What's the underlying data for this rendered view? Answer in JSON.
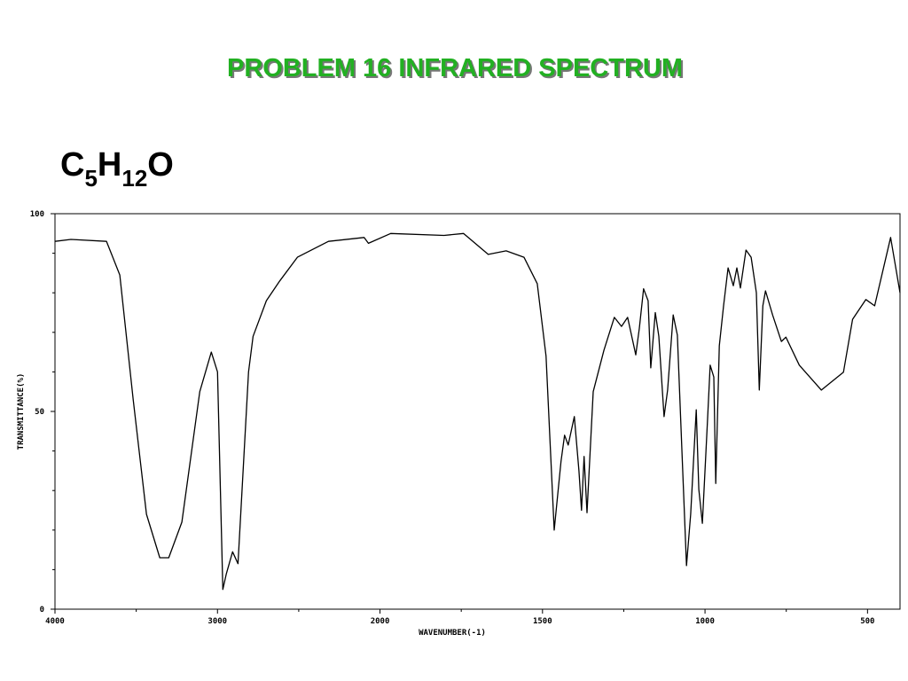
{
  "chart_data": {
    "type": "line",
    "title": "PROBLEM  16   INFRARED SPECTRUM",
    "formula_parts": [
      "C",
      "5",
      "H",
      "12",
      "O"
    ],
    "x_label": "WAVENUMBER(-1)",
    "y_label": "TRANSMITTANCE(%)",
    "xlim": [
      4000,
      400
    ],
    "x_scale_break": {
      "value": 2000,
      "factor": 2
    },
    "xticks": [
      4000,
      3000,
      2000,
      1500,
      1000,
      500
    ],
    "xminor": [
      3500,
      2500,
      1750,
      1250,
      750
    ],
    "ylim": [
      0,
      100
    ],
    "yticks": [
      0,
      50,
      100
    ],
    "yminor": [
      10,
      20,
      30,
      40,
      60,
      70,
      80,
      90
    ],
    "color": "#000000",
    "x": [
      4000,
      3902,
      3683,
      3601,
      3519,
      3437,
      3355,
      3300,
      3219,
      3109,
      3038,
      3000,
      2967,
      2945,
      2907,
      2874,
      2809,
      2781,
      2699,
      2617,
      2508,
      2317,
      2098,
      2071,
      1967,
      1803,
      1743,
      1667,
      1612,
      1557,
      1516,
      1489,
      1464,
      1443,
      1432,
      1421,
      1402,
      1388,
      1380,
      1372,
      1363,
      1344,
      1311,
      1279,
      1257,
      1238,
      1213,
      1202,
      1189,
      1175,
      1167,
      1153,
      1142,
      1126,
      1115,
      1098,
      1085,
      1071,
      1057,
      1044,
      1027,
      1019,
      1008,
      992,
      984,
      973,
      967,
      956,
      943,
      929,
      913,
      902,
      891,
      874,
      858,
      842,
      833,
      822,
      814,
      792,
      765,
      751,
      710,
      642,
      574,
      546,
      505,
      478,
      429,
      400
    ],
    "values": [
      93,
      93.5,
      93,
      84.5,
      53,
      24,
      13,
      13,
      22,
      55,
      65,
      60,
      5,
      9,
      14.5,
      11.5,
      60,
      69,
      78,
      83,
      89,
      93,
      94,
      92.5,
      95,
      94.5,
      95,
      89.7,
      90.6,
      89,
      82.3,
      64,
      20,
      37.4,
      44,
      41.5,
      48.7,
      35,
      25,
      38.6,
      24.4,
      55,
      65.5,
      73.8,
      71.5,
      73.8,
      64.3,
      71,
      81,
      78,
      61,
      75,
      69,
      48.7,
      55.4,
      74.4,
      69.3,
      39.7,
      11,
      24,
      50.4,
      30.3,
      21.7,
      48.2,
      61.7,
      58.7,
      31.8,
      66.6,
      76.7,
      86.3,
      81.8,
      86.3,
      81.2,
      90.8,
      89,
      80,
      55.4,
      76.7,
      80.5,
      74.4,
      67.7,
      68.8,
      61.7,
      55.4,
      59.9,
      73.3,
      78.3,
      76.7,
      94,
      80
    ]
  }
}
